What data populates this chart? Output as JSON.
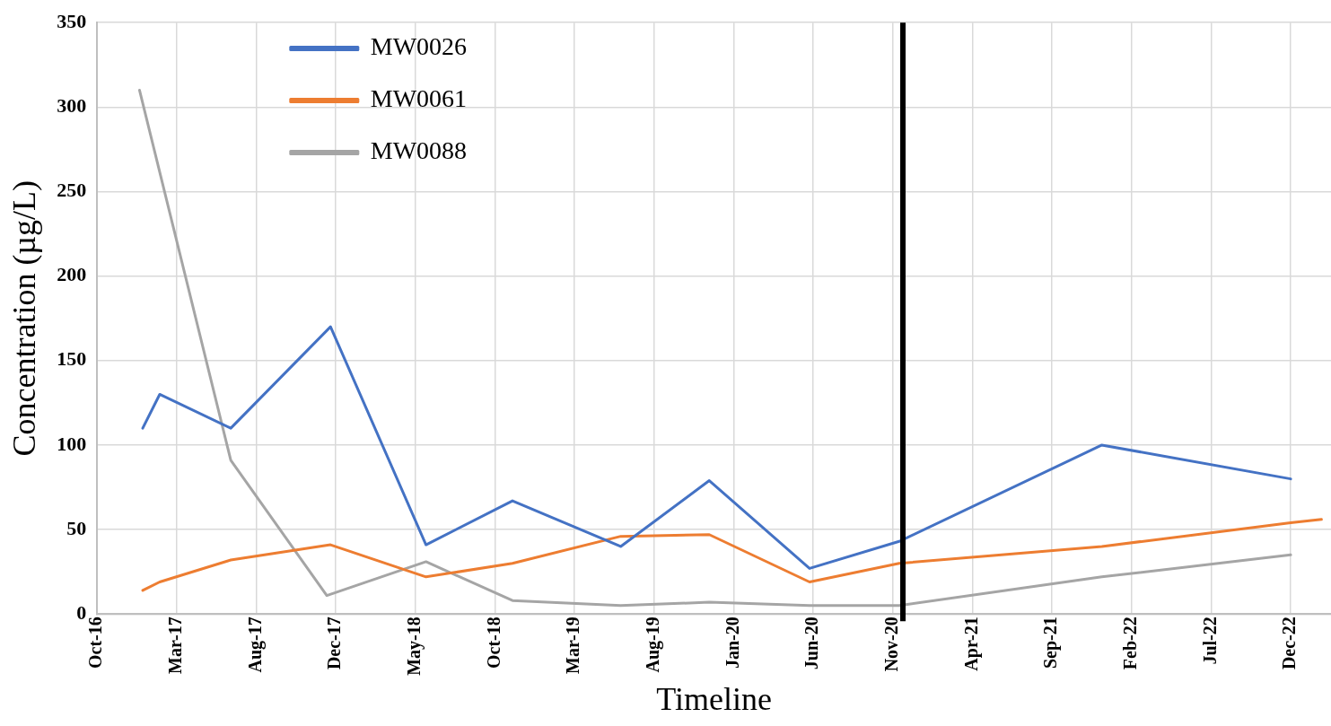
{
  "chart_data": {
    "type": "line",
    "xlabel": "Timeline",
    "ylabel": "Concentration (µg/L)",
    "xlim": [
      "2016-10-06",
      "2023-02-18"
    ],
    "ylim": [
      0,
      350
    ],
    "xticks": [
      {
        "value": "2016-10-06",
        "label": "Oct-16"
      },
      {
        "value": "2017-03-05",
        "label": "Mar-17"
      },
      {
        "value": "2017-08-02",
        "label": "Aug-17"
      },
      {
        "value": "2017-12-30",
        "label": "Dec-17"
      },
      {
        "value": "2018-05-29",
        "label": "May-18"
      },
      {
        "value": "2018-10-26",
        "label": "Oct-18"
      },
      {
        "value": "2019-03-25",
        "label": "Mar-19"
      },
      {
        "value": "2019-08-22",
        "label": "Aug-19"
      },
      {
        "value": "2020-01-19",
        "label": "Jan-20"
      },
      {
        "value": "2020-06-17",
        "label": "Jun-20"
      },
      {
        "value": "2020-11-14",
        "label": "Nov-20"
      },
      {
        "value": "2021-04-13",
        "label": "Apr-21"
      },
      {
        "value": "2021-09-10",
        "label": "Sep-21"
      },
      {
        "value": "2022-02-07",
        "label": "Feb-22"
      },
      {
        "value": "2022-07-07",
        "label": "Jul-22"
      },
      {
        "value": "2022-12-04",
        "label": "Dec-22"
      }
    ],
    "yticks": [
      0,
      50,
      100,
      150,
      200,
      250,
      300,
      350
    ],
    "grid": true,
    "legend": "top left",
    "marker": "none",
    "line_style": "solid",
    "ref_lines": [
      {
        "axis": "x",
        "value": "2020-12-03",
        "color": "#000000"
      }
    ],
    "series": [
      {
        "name": "MW0026",
        "color": "#4472c4",
        "x": [
          "2016-12-31",
          "2017-02-01",
          "2017-06-15",
          "2017-12-20",
          "2018-06-18",
          "2018-11-28",
          "2019-06-20",
          "2019-12-04",
          "2020-06-10",
          "2020-11-26",
          "2021-12-13",
          "2022-12-04"
        ],
        "values": [
          110,
          130,
          110,
          170,
          41,
          67,
          40,
          79,
          27,
          43,
          100,
          80
        ]
      },
      {
        "name": "MW0061",
        "color": "#ed7d31",
        "x": [
          "2016-12-31",
          "2017-02-01",
          "2017-06-15",
          "2017-12-20",
          "2018-06-18",
          "2018-11-28",
          "2019-06-20",
          "2019-12-04",
          "2020-06-10",
          "2020-11-26",
          "2021-12-13",
          "2022-12-04",
          "2023-01-31"
        ],
        "values": [
          14,
          19,
          32,
          41,
          22,
          30,
          46,
          47,
          19,
          30,
          40,
          54,
          56
        ]
      },
      {
        "name": "MW0088",
        "color": "#a5a5a5",
        "x": [
          "2016-12-25",
          "2017-06-15",
          "2017-12-13",
          "2018-06-18",
          "2018-11-28",
          "2019-06-20",
          "2019-12-04",
          "2020-06-10",
          "2020-11-26",
          "2021-12-13",
          "2022-12-04"
        ],
        "values": [
          310,
          91,
          11,
          31,
          8,
          5,
          7,
          5,
          5,
          22,
          35
        ]
      }
    ]
  }
}
